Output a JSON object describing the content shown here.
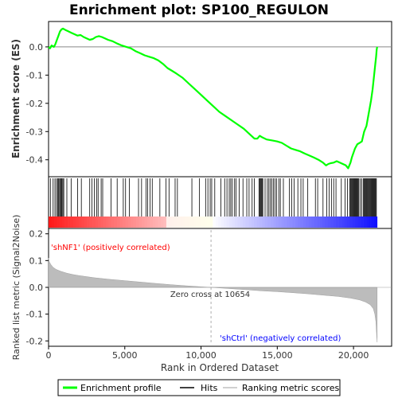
{
  "chart_data": {
    "type": "line",
    "title": "Enrichment plot: SP100_REGULON",
    "xlabel": "Rank in Ordered Dataset",
    "panels": {
      "enrichment": {
        "ylabel": "Enrichment score (ES)",
        "ylim": [
          -0.46,
          0.09
        ],
        "yticks": [
          0.0,
          -0.1,
          -0.2,
          -0.3,
          -0.4
        ],
        "ytick_labels": [
          "0.0",
          "-0.1",
          "-0.2",
          "-0.3",
          "-0.4"
        ],
        "series_color": "#00ff00",
        "points": [
          [
            0,
            0.0
          ],
          [
            100,
            -0.005
          ],
          [
            200,
            0.005
          ],
          [
            350,
            0.0
          ],
          [
            450,
            0.01
          ],
          [
            550,
            0.025
          ],
          [
            650,
            0.04
          ],
          [
            750,
            0.055
          ],
          [
            850,
            0.062
          ],
          [
            950,
            0.065
          ],
          [
            1100,
            0.06
          ],
          [
            1300,
            0.055
          ],
          [
            1500,
            0.05
          ],
          [
            1700,
            0.045
          ],
          [
            1900,
            0.04
          ],
          [
            2100,
            0.042
          ],
          [
            2300,
            0.035
          ],
          [
            2500,
            0.03
          ],
          [
            2700,
            0.025
          ],
          [
            2900,
            0.028
          ],
          [
            3100,
            0.035
          ],
          [
            3300,
            0.038
          ],
          [
            3500,
            0.035
          ],
          [
            3700,
            0.03
          ],
          [
            3900,
            0.025
          ],
          [
            4200,
            0.02
          ],
          [
            4500,
            0.012
          ],
          [
            4800,
            0.005
          ],
          [
            5100,
            0.0
          ],
          [
            5400,
            -0.005
          ],
          [
            5700,
            -0.015
          ],
          [
            6000,
            -0.022
          ],
          [
            6300,
            -0.03
          ],
          [
            6600,
            -0.035
          ],
          [
            6900,
            -0.04
          ],
          [
            7200,
            -0.048
          ],
          [
            7500,
            -0.06
          ],
          [
            7800,
            -0.075
          ],
          [
            8100,
            -0.085
          ],
          [
            8400,
            -0.095
          ],
          [
            8800,
            -0.11
          ],
          [
            9200,
            -0.13
          ],
          [
            9600,
            -0.15
          ],
          [
            10000,
            -0.17
          ],
          [
            10400,
            -0.19
          ],
          [
            10800,
            -0.21
          ],
          [
            11200,
            -0.23
          ],
          [
            11600,
            -0.245
          ],
          [
            12000,
            -0.26
          ],
          [
            12400,
            -0.275
          ],
          [
            12800,
            -0.29
          ],
          [
            13200,
            -0.31
          ],
          [
            13500,
            -0.325
          ],
          [
            13700,
            -0.325
          ],
          [
            13850,
            -0.315
          ],
          [
            14000,
            -0.32
          ],
          [
            14300,
            -0.328
          ],
          [
            14700,
            -0.332
          ],
          [
            15000,
            -0.335
          ],
          [
            15300,
            -0.34
          ],
          [
            15600,
            -0.35
          ],
          [
            15900,
            -0.36
          ],
          [
            16200,
            -0.365
          ],
          [
            16500,
            -0.37
          ],
          [
            16800,
            -0.378
          ],
          [
            17100,
            -0.385
          ],
          [
            17400,
            -0.392
          ],
          [
            17700,
            -0.4
          ],
          [
            18000,
            -0.41
          ],
          [
            18200,
            -0.42
          ],
          [
            18350,
            -0.415
          ],
          [
            18500,
            -0.412
          ],
          [
            18700,
            -0.41
          ],
          [
            18900,
            -0.405
          ],
          [
            19100,
            -0.41
          ],
          [
            19300,
            -0.415
          ],
          [
            19500,
            -0.42
          ],
          [
            19650,
            -0.43
          ],
          [
            19800,
            -0.41
          ],
          [
            19900,
            -0.39
          ],
          [
            20000,
            -0.375
          ],
          [
            20100,
            -0.36
          ],
          [
            20250,
            -0.345
          ],
          [
            20400,
            -0.34
          ],
          [
            20550,
            -0.335
          ],
          [
            20700,
            -0.3
          ],
          [
            20850,
            -0.28
          ],
          [
            20950,
            -0.25
          ],
          [
            21050,
            -0.22
          ],
          [
            21150,
            -0.19
          ],
          [
            21250,
            -0.15
          ],
          [
            21350,
            -0.1
          ],
          [
            21430,
            -0.06
          ],
          [
            21480,
            -0.035
          ],
          [
            21520,
            -0.01
          ],
          [
            21550,
            0.0
          ]
        ]
      },
      "hits": {
        "positions": [
          120,
          300,
          420,
          520,
          600,
          660,
          720,
          780,
          830,
          880,
          940,
          1000,
          1200,
          1480,
          1900,
          2150,
          2700,
          2850,
          3000,
          3150,
          3250,
          3450,
          3550,
          4100,
          4500,
          4900,
          5050,
          5300,
          5900,
          6100,
          6400,
          6500,
          6650,
          6800,
          7300,
          7700,
          7900,
          8300,
          8450,
          9400,
          9900,
          10300,
          10450,
          10600,
          10700,
          10900,
          11300,
          11550,
          11700,
          11850,
          11950,
          12050,
          12200,
          12300,
          12500,
          12750,
          13000,
          13150,
          13350,
          13500,
          13800,
          13850,
          13900,
          13950,
          14000,
          14050,
          14200,
          14350,
          14450,
          14550,
          14650,
          14750,
          14850,
          14950,
          15100,
          15200,
          15400,
          15800,
          15950,
          16100,
          16350,
          16550,
          16700,
          17000,
          17500,
          17650,
          18000,
          18250,
          18400,
          18550,
          18700,
          18850,
          19200,
          19450,
          19600,
          19750,
          19800,
          19850,
          19900,
          19950,
          20000,
          20050,
          20100,
          20150,
          20200,
          20250,
          20300,
          20350,
          20450,
          20550,
          20650,
          20700,
          20750,
          20800,
          20850,
          20900,
          20950,
          21000,
          21050,
          21100,
          21150,
          21200,
          21250,
          21300,
          21350,
          21400,
          21450,
          21500
        ]
      },
      "ranking_metric": {
        "ylabel": "Ranked list metric (Signal2Noise)",
        "ylim": [
          -0.22,
          0.22
        ],
        "yticks": [
          0.2,
          0.1,
          0.0,
          -0.1,
          -0.2
        ],
        "ytick_labels": [
          "0.2",
          "0.1",
          "0.0",
          "-0.1",
          "-0.2"
        ],
        "points": [
          [
            0,
            0.11
          ],
          [
            50,
            0.095
          ],
          [
            150,
            0.085
          ],
          [
            300,
            0.075
          ],
          [
            500,
            0.067
          ],
          [
            800,
            0.06
          ],
          [
            1200,
            0.053
          ],
          [
            1600,
            0.048
          ],
          [
            2000,
            0.044
          ],
          [
            3000,
            0.036
          ],
          [
            4000,
            0.03
          ],
          [
            5000,
            0.025
          ],
          [
            6000,
            0.02
          ],
          [
            7000,
            0.015
          ],
          [
            8000,
            0.01
          ],
          [
            9000,
            0.006
          ],
          [
            10000,
            0.002
          ],
          [
            10654,
            0.0
          ],
          [
            12000,
            -0.005
          ],
          [
            13000,
            -0.009
          ],
          [
            14000,
            -0.013
          ],
          [
            15000,
            -0.016
          ],
          [
            16000,
            -0.02
          ],
          [
            17000,
            -0.024
          ],
          [
            18000,
            -0.029
          ],
          [
            19000,
            -0.034
          ],
          [
            19800,
            -0.04
          ],
          [
            20400,
            -0.047
          ],
          [
            20800,
            -0.055
          ],
          [
            21100,
            -0.065
          ],
          [
            21300,
            -0.08
          ],
          [
            21400,
            -0.1
          ],
          [
            21470,
            -0.13
          ],
          [
            21520,
            -0.18
          ],
          [
            21550,
            -0.205
          ]
        ],
        "zero_cross_label": "Zero cross at 10654",
        "zero_cross": 10654,
        "positive_label": "'shNF1' (positively correlated)",
        "negative_label": "'shCtrl' (negatively correlated)"
      }
    },
    "xlim": [
      0,
      22500
    ],
    "xticks": [
      0,
      5000,
      10000,
      15000,
      20000
    ],
    "xtick_labels": [
      "0",
      "5,000",
      "10,000",
      "15,000",
      "20,000"
    ],
    "dataset_size": 21550,
    "legend": {
      "position": "bottom",
      "entries": [
        {
          "label": "Enrichment profile",
          "color": "#00ff00"
        },
        {
          "label": "Hits",
          "color": "#000000"
        },
        {
          "label": "Ranking metric scores",
          "color": "#c0c0c0"
        }
      ]
    }
  }
}
